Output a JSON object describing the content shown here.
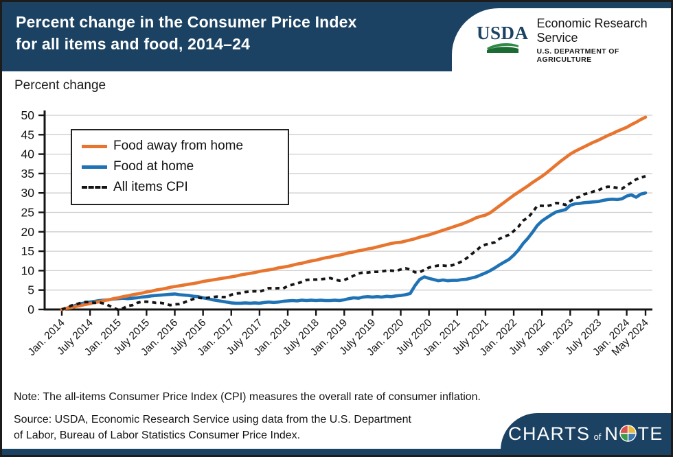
{
  "header": {
    "title_line1": "Percent change in the Consumer Price Index",
    "title_line2": "for all items and food, 2014–24",
    "background_color": "#1B4262",
    "logo": {
      "org_acronym": "USDA",
      "org_name": "Economic Research Service",
      "org_dept": "U.S. DEPARTMENT OF AGRICULTURE"
    }
  },
  "chart_label": "Percent change",
  "chart_data": {
    "type": "line",
    "title": "Percent change in the Consumer Price Index for all items and food, 2014–24",
    "ylabel": "Percent change",
    "ylim": [
      0,
      50
    ],
    "ytick_step": 5,
    "grid": "horizontal",
    "grid_color": "#cdcdcd",
    "legend_position": "upper-left",
    "months_total": 124,
    "x_tick_months": [
      0,
      6,
      12,
      18,
      24,
      30,
      36,
      42,
      48,
      54,
      60,
      66,
      72,
      78,
      84,
      90,
      96,
      102,
      108,
      114,
      120,
      124
    ],
    "x_tick_labels": [
      "Jan. 2014",
      "July 2014",
      "Jan. 2015",
      "July 2015",
      "Jan. 2016",
      "July 2016",
      "Jan. 2017",
      "July 2017",
      "Jan. 2018",
      "July 2018",
      "Jan. 2019",
      "July 2019",
      "Jan. 2020",
      "July 2020",
      "Jan. 2021",
      "July 2021",
      "Jan. 2022",
      "July 2022",
      "Jan. 2023",
      "July 2023",
      "Jan. 2024",
      "May 2024"
    ],
    "series": [
      {
        "name": "Food away from home",
        "color": "#E8752F",
        "line_style": "solid",
        "values": [
          0.0,
          0.3,
          0.5,
          0.8,
          1.0,
          1.3,
          1.5,
          1.8,
          2.0,
          2.3,
          2.5,
          2.8,
          3.0,
          3.3,
          3.5,
          3.8,
          4.0,
          4.2,
          4.5,
          4.7,
          5.0,
          5.2,
          5.4,
          5.7,
          5.9,
          6.1,
          6.3,
          6.5,
          6.7,
          6.9,
          7.2,
          7.4,
          7.6,
          7.8,
          8.0,
          8.2,
          8.4,
          8.6,
          8.9,
          9.1,
          9.3,
          9.5,
          9.8,
          10.0,
          10.2,
          10.4,
          10.7,
          10.9,
          11.1,
          11.4,
          11.7,
          11.9,
          12.2,
          12.5,
          12.7,
          13.0,
          13.3,
          13.5,
          13.8,
          14.0,
          14.3,
          14.6,
          14.8,
          15.1,
          15.3,
          15.6,
          15.8,
          16.1,
          16.4,
          16.7,
          17.0,
          17.2,
          17.3,
          17.6,
          17.9,
          18.2,
          18.6,
          18.9,
          19.2,
          19.6,
          20.0,
          20.4,
          20.8,
          21.2,
          21.6,
          22.0,
          22.5,
          23.0,
          23.6,
          24.0,
          24.3,
          24.9,
          25.8,
          26.7,
          27.6,
          28.5,
          29.4,
          30.2,
          31.0,
          31.8,
          32.7,
          33.5,
          34.3,
          35.2,
          36.2,
          37.2,
          38.2,
          39.1,
          40.0,
          40.7,
          41.3,
          41.9,
          42.5,
          43.1,
          43.6,
          44.2,
          44.8,
          45.3,
          45.9,
          46.4,
          46.9,
          47.6,
          48.2,
          48.9,
          49.5
        ]
      },
      {
        "name": "Food at home",
        "color": "#1F73B5",
        "line_style": "solid",
        "values": [
          0.0,
          0.3,
          0.7,
          1.1,
          1.5,
          1.7,
          1.9,
          2.1,
          2.3,
          2.4,
          2.5,
          2.7,
          2.8,
          2.9,
          2.8,
          2.9,
          3.0,
          3.2,
          3.3,
          3.5,
          3.6,
          3.7,
          3.8,
          3.9,
          4.0,
          3.8,
          3.7,
          3.6,
          3.4,
          3.3,
          3.0,
          2.8,
          2.5,
          2.3,
          2.1,
          1.9,
          1.7,
          1.6,
          1.6,
          1.7,
          1.6,
          1.7,
          1.6,
          1.8,
          1.9,
          1.8,
          1.9,
          2.1,
          2.2,
          2.3,
          2.2,
          2.4,
          2.3,
          2.4,
          2.3,
          2.4,
          2.3,
          2.3,
          2.4,
          2.3,
          2.5,
          2.8,
          3.0,
          2.9,
          3.2,
          3.3,
          3.2,
          3.3,
          3.2,
          3.4,
          3.3,
          3.5,
          3.6,
          3.8,
          4.1,
          6.1,
          7.7,
          8.4,
          8.0,
          7.7,
          7.4,
          7.6,
          7.4,
          7.5,
          7.5,
          7.7,
          7.8,
          8.1,
          8.4,
          8.9,
          9.4,
          10.0,
          10.7,
          11.5,
          12.2,
          12.9,
          14.0,
          15.3,
          17.0,
          18.3,
          19.9,
          21.6,
          22.8,
          23.6,
          24.4,
          25.1,
          25.4,
          25.7,
          26.8,
          27.2,
          27.3,
          27.5,
          27.6,
          27.7,
          27.8,
          28.1,
          28.3,
          28.4,
          28.3,
          28.5,
          29.2,
          29.5,
          28.9,
          29.7,
          30.0
        ]
      },
      {
        "name": "All items CPI",
        "color": "#141414",
        "line_style": "dashed",
        "values": [
          0.0,
          0.4,
          1.0,
          1.3,
          1.7,
          1.9,
          1.9,
          1.7,
          1.8,
          1.5,
          1.0,
          0.4,
          -0.1,
          0.3,
          0.9,
          1.1,
          1.7,
          2.0,
          2.0,
          1.9,
          1.7,
          1.7,
          1.5,
          1.1,
          1.3,
          1.4,
          1.8,
          2.3,
          2.7,
          3.0,
          2.9,
          3.0,
          3.2,
          3.3,
          3.2,
          3.2,
          3.8,
          4.1,
          4.2,
          4.5,
          4.6,
          4.7,
          4.6,
          5.0,
          5.5,
          5.4,
          5.5,
          5.4,
          6.0,
          6.4,
          6.7,
          7.1,
          7.6,
          7.7,
          7.7,
          7.8,
          7.9,
          8.1,
          7.7,
          7.4,
          7.6,
          8.1,
          8.7,
          9.3,
          9.5,
          9.5,
          9.7,
          9.7,
          9.8,
          10.0,
          10.0,
          9.9,
          10.3,
          10.6,
          10.3,
          9.6,
          9.6,
          10.2,
          10.8,
          11.1,
          11.3,
          11.3,
          11.2,
          11.4,
          11.8,
          12.4,
          13.2,
          14.2,
          15.1,
          16.2,
          16.7,
          17.0,
          17.3,
          18.2,
          18.8,
          19.2,
          20.2,
          21.3,
          22.9,
          23.6,
          25.0,
          26.7,
          26.7,
          26.6,
          26.9,
          27.4,
          27.3,
          26.9,
          27.9,
          28.6,
          29.0,
          29.7,
          30.0,
          30.4,
          30.7,
          31.3,
          31.6,
          31.5,
          31.3,
          31.1,
          31.9,
          32.7,
          33.5,
          34.0,
          34.3
        ]
      }
    ]
  },
  "footer": {
    "note": "Note: The all-items Consumer Price Index (CPI) measures the overall rate of consumer inflation.",
    "source": "Source: USDA, Economic Research Service using data from the U.S. Department\nof Labor, Bureau of Labor Statistics Consumer Price Index.",
    "badge": {
      "part1": "CHARTS",
      "part2": "of",
      "part3": "N",
      "part4": "TE"
    }
  }
}
